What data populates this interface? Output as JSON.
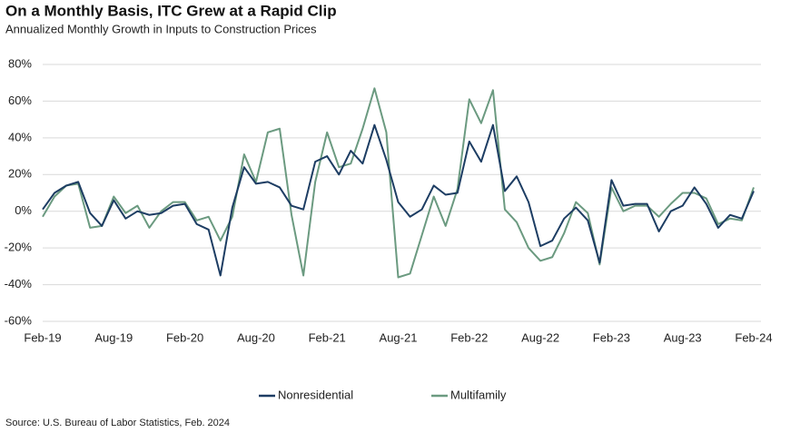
{
  "chart_data": {
    "type": "line",
    "title": "On a Monthly Basis, ITC Grew at a Rapid Clip",
    "subtitle": "Annualized Monthly Growth in Inputs to Construction Prices",
    "source": "Source: U.S. Bureau of Labor Statistics, Feb. 2024",
    "categories": [
      "Feb-19",
      null,
      null,
      null,
      null,
      null,
      "Aug-19",
      null,
      null,
      null,
      null,
      null,
      "Feb-20",
      null,
      null,
      null,
      null,
      null,
      "Aug-20",
      null,
      null,
      null,
      null,
      null,
      "Feb-21",
      null,
      null,
      null,
      null,
      null,
      "Aug-21",
      null,
      null,
      null,
      null,
      null,
      "Feb-22",
      null,
      null,
      null,
      null,
      null,
      "Aug-22",
      null,
      null,
      null,
      null,
      null,
      "Feb-23",
      null,
      null,
      null,
      null,
      null,
      "Aug-23",
      null,
      null,
      null,
      null,
      null,
      "Feb-24"
    ],
    "series": [
      {
        "name": "Nonresidential",
        "color": "#1d3d63",
        "values": [
          1,
          10,
          14,
          16,
          -1,
          -8,
          6,
          -4,
          0,
          -2,
          -1,
          3,
          4,
          -7,
          -10,
          -35,
          2,
          24,
          15,
          16,
          13,
          3,
          1,
          27,
          30,
          20,
          33,
          26,
          47,
          28,
          5,
          -3,
          1,
          14,
          9,
          10,
          38,
          27,
          47,
          11,
          19,
          5,
          -19,
          -16,
          -4,
          2,
          -5,
          -28,
          17,
          3,
          4,
          4,
          -11,
          0,
          3,
          13,
          4,
          -9,
          -2,
          -4,
          11
        ]
      },
      {
        "name": "Multifamily",
        "color": "#6b9a80",
        "values": [
          -3,
          8,
          14,
          15,
          -9,
          -8,
          8,
          -1,
          3,
          -9,
          0,
          5,
          5,
          -5,
          -3,
          -16,
          -3,
          31,
          16,
          43,
          45,
          -2,
          -35,
          16,
          43,
          24,
          26,
          45,
          67,
          43,
          -36,
          -34,
          -13,
          8,
          -8,
          12,
          61,
          48,
          66,
          1,
          -6,
          -20,
          -27,
          -25,
          -12,
          5,
          -1,
          -29,
          13,
          0,
          3,
          3,
          -3,
          4,
          10,
          10,
          7,
          -7,
          -4,
          -5,
          13
        ]
      }
    ],
    "ylim": [
      -60,
      80
    ],
    "yticks": [
      {
        "value": -60,
        "label": "-60%"
      },
      {
        "value": -40,
        "label": "-40%"
      },
      {
        "value": -20,
        "label": "-20%"
      },
      {
        "value": 0,
        "label": "0%"
      },
      {
        "value": 20,
        "label": "20%"
      },
      {
        "value": 40,
        "label": "40%"
      },
      {
        "value": 60,
        "label": "60%"
      },
      {
        "value": 80,
        "label": "80%"
      }
    ],
    "grid": true,
    "legend": "bottom"
  }
}
